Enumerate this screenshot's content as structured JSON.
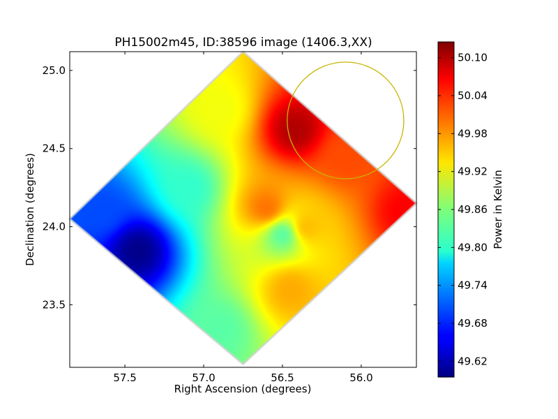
{
  "chart_data": {
    "type": "heatmap",
    "title": "PH15002m45, ID:38596 image (1406.3,XX)",
    "xlabel": "Right Ascension (degrees)",
    "ylabel": "Declination (degrees)",
    "xlim": [
      57.85,
      55.65
    ],
    "ylim": [
      23.1,
      25.12
    ],
    "x_inverted": true,
    "xticks": [
      57.5,
      57.0,
      56.5,
      56.0
    ],
    "xtick_labels": [
      "57.5",
      "57.0",
      "56.5",
      "56.0"
    ],
    "yticks": [
      25.0,
      24.5,
      24.0,
      23.5
    ],
    "ytick_labels": [
      "25.0",
      "24.5",
      "24.0",
      "23.5"
    ],
    "footprint_diamond": {
      "top": [
        56.75,
        25.12
      ],
      "right": [
        55.65,
        24.15
      ],
      "bottom": [
        56.75,
        23.12
      ],
      "left": [
        57.85,
        24.05
      ]
    },
    "hotspots": [
      {
        "ra": 57.42,
        "dec": 23.85,
        "value": 49.6
      },
      {
        "ra": 57.65,
        "dec": 24.1,
        "value": 49.7
      },
      {
        "ra": 57.1,
        "dec": 24.25,
        "value": 49.82
      },
      {
        "ra": 56.42,
        "dec": 24.62,
        "value": 50.1
      },
      {
        "ra": 56.1,
        "dec": 24.45,
        "value": 50.02
      },
      {
        "ra": 55.72,
        "dec": 24.1,
        "value": 50.06
      },
      {
        "ra": 56.35,
        "dec": 24.0,
        "value": 49.96
      },
      {
        "ra": 56.6,
        "dec": 24.12,
        "value": 50.0
      },
      {
        "ra": 56.9,
        "dec": 23.35,
        "value": 49.84
      },
      {
        "ra": 56.45,
        "dec": 23.6,
        "value": 49.97
      },
      {
        "ra": 56.9,
        "dec": 24.75,
        "value": 49.92
      },
      {
        "ra": 56.5,
        "dec": 23.95,
        "value": 49.84
      }
    ],
    "annotation_circle": {
      "ra": 56.1,
      "dec": 24.68,
      "radius_deg": 0.37,
      "color": "#c8b400"
    },
    "colorbar": {
      "label": "Power in Kelvin",
      "range": [
        49.595,
        50.125
      ],
      "ticks": [
        50.1,
        50.04,
        49.98,
        49.92,
        49.86,
        49.8,
        49.74,
        49.68,
        49.62
      ],
      "tick_labels": [
        "50.10",
        "50.04",
        "49.98",
        "49.92",
        "49.86",
        "49.80",
        "49.74",
        "49.68",
        "49.62"
      ],
      "colormap": "jet"
    }
  }
}
